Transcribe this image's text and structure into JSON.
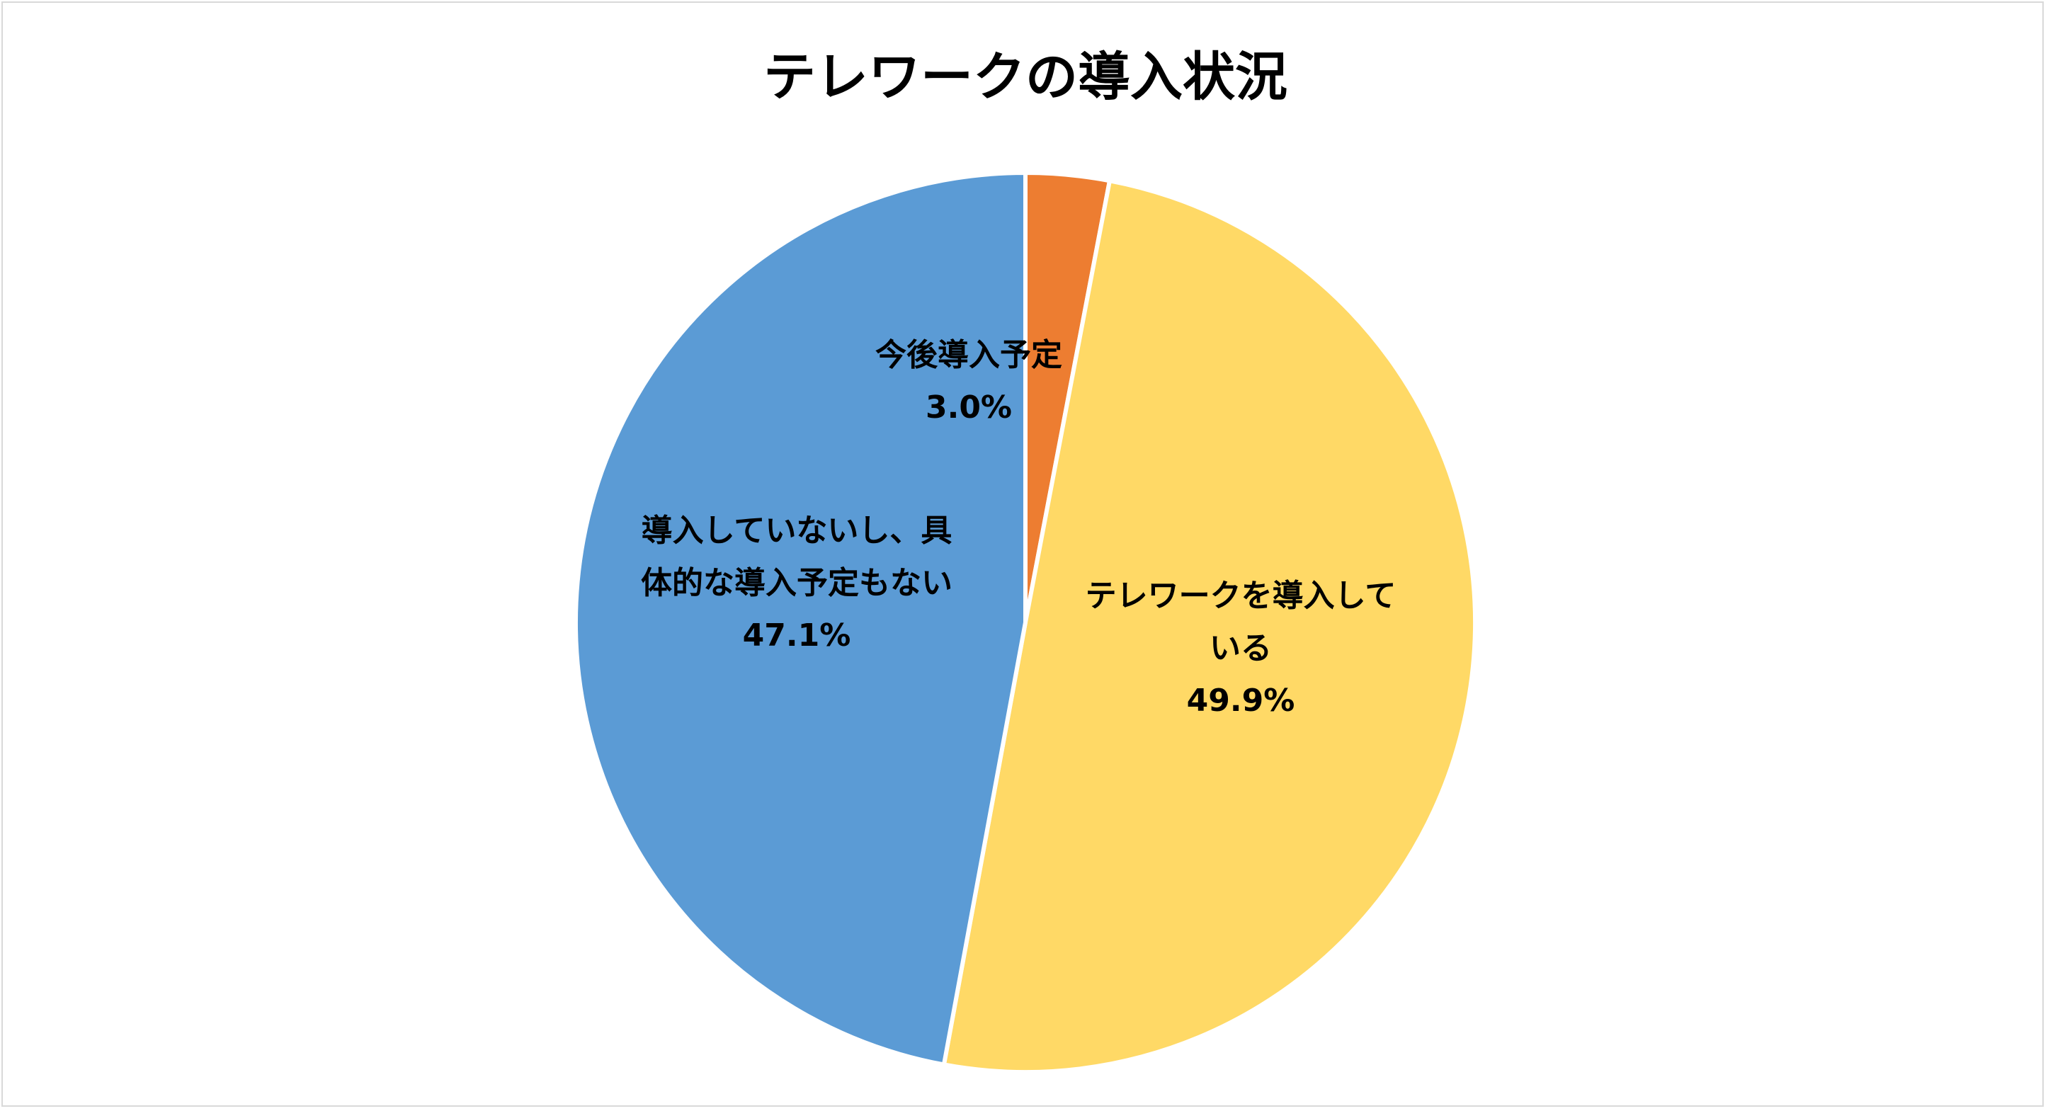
{
  "chart_data": {
    "type": "pie",
    "title": "テレワークの導入状況",
    "start_angle_deg": 0,
    "direction": "clockwise",
    "slices": [
      {
        "label_lines": [
          "今後導入予定"
        ],
        "value": 3.0,
        "value_label": "3.0%",
        "color": "#ED7D31"
      },
      {
        "label_lines": [
          "テレワークを導入して",
          "いる"
        ],
        "value": 49.9,
        "value_label": "49.9%",
        "color": "#FFD966"
      },
      {
        "label_lines": [
          "導入していないし、具",
          "体的な導入予定もない"
        ],
        "value": 47.1,
        "value_label": "47.1%",
        "color": "#5B9BD5"
      }
    ],
    "slice_border_color": "#FFFFFF",
    "legend": "none",
    "background": "#FFFFFF",
    "frame_border_color": "#D9D9D9"
  }
}
